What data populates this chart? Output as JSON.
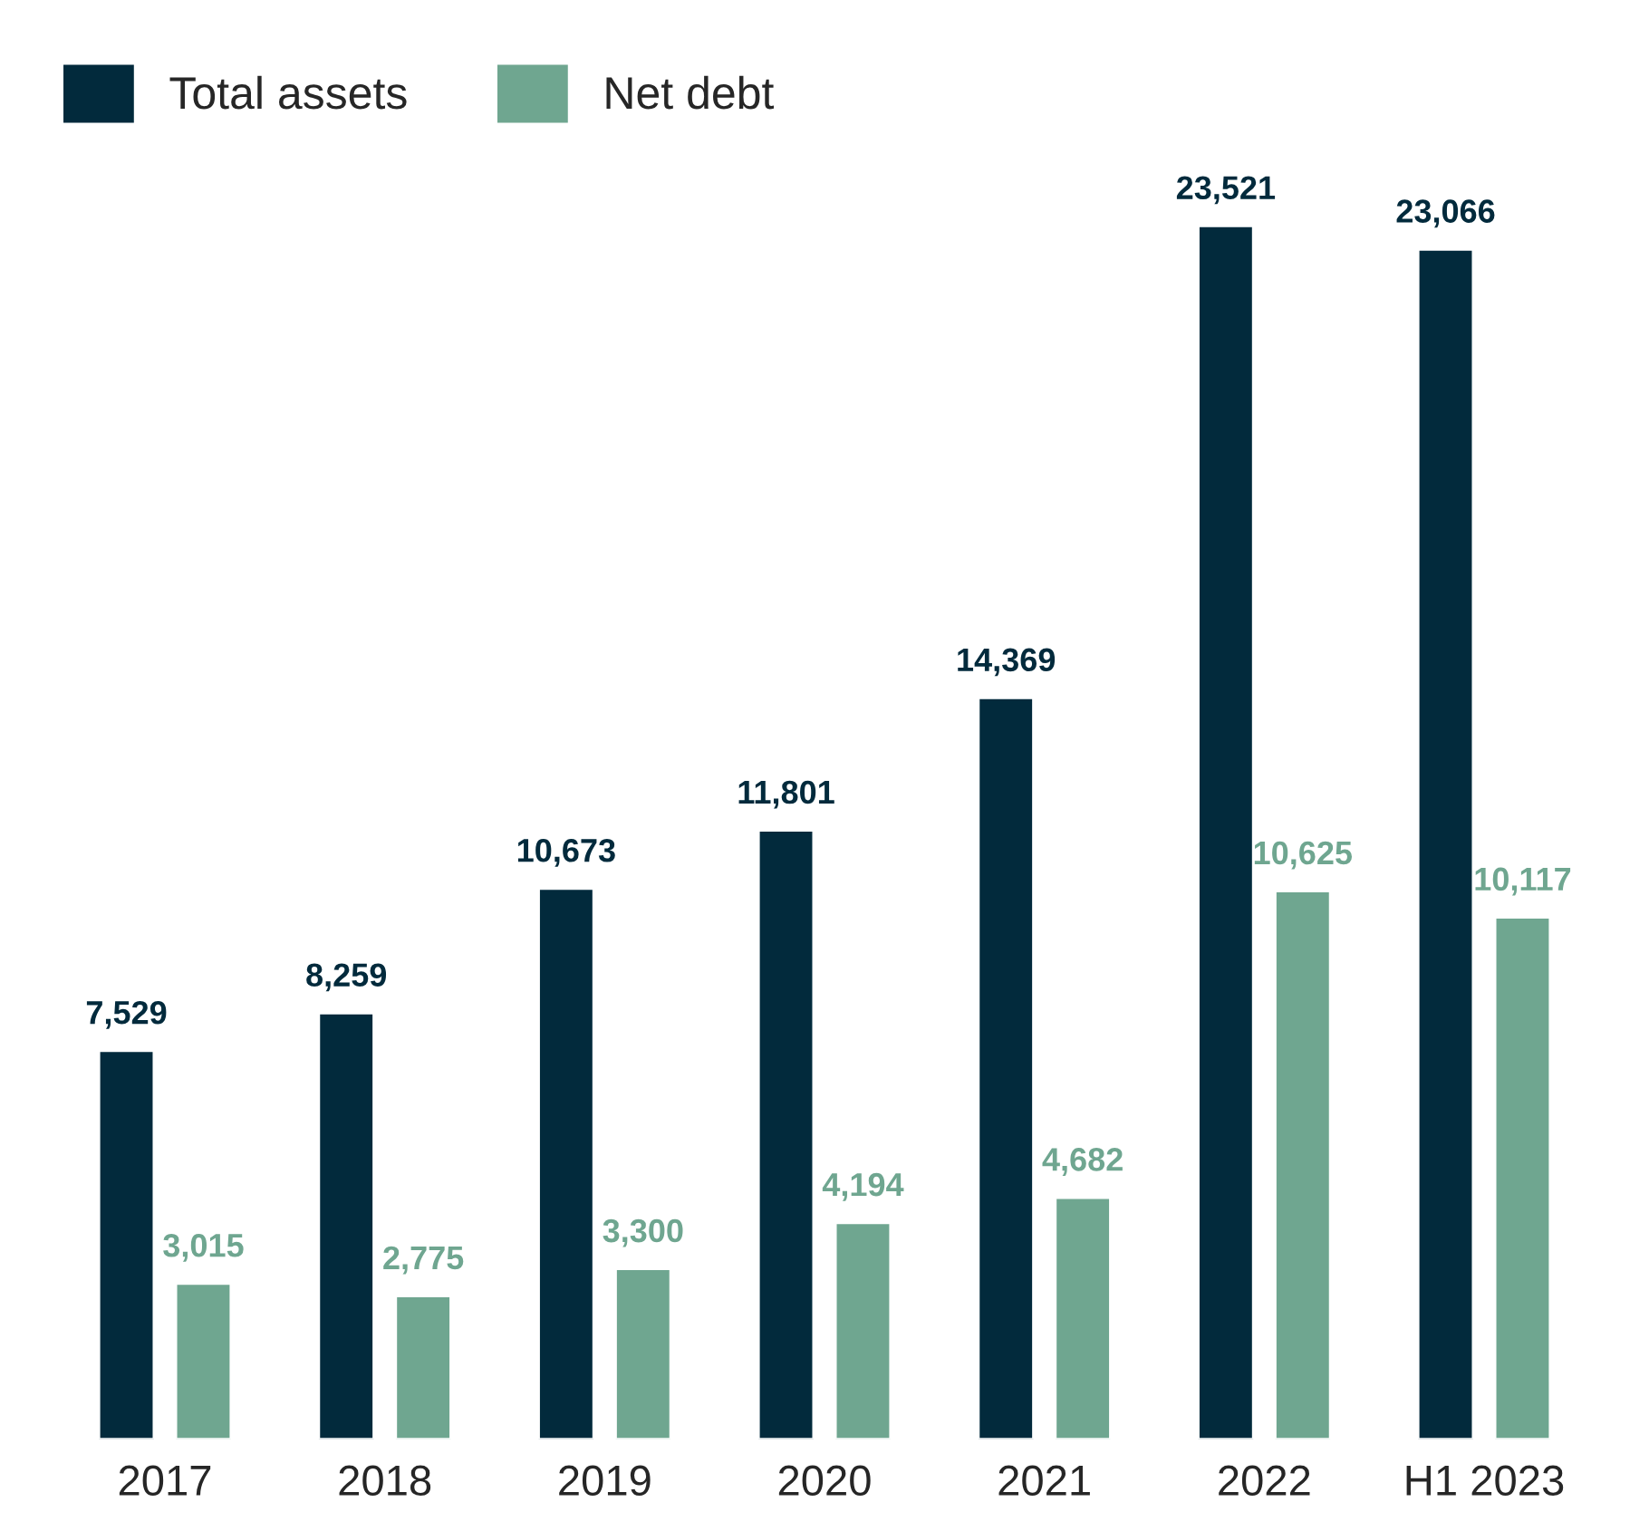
{
  "chart_data": {
    "type": "bar",
    "categories": [
      "2017",
      "2018",
      "2019",
      "2020",
      "2021",
      "2022",
      "H1 2023"
    ],
    "series": [
      {
        "name": "Total assets",
        "color": "#022a3c",
        "values": [
          7529,
          8259,
          10673,
          11801,
          14369,
          23521,
          23066
        ],
        "value_labels": [
          "7,529",
          "8,259",
          "10,673",
          "11,801",
          "14,369",
          "23,521",
          "23,066"
        ]
      },
      {
        "name": "Net debt",
        "color": "#6fa690",
        "values": [
          3015,
          2775,
          3300,
          4194,
          4682,
          10625,
          10117
        ],
        "value_labels": [
          "3,015",
          "2,775",
          "3,300",
          "4,194",
          "4,682",
          "10,625",
          "10,117"
        ]
      }
    ],
    "legend": "top left",
    "grid": false
  }
}
